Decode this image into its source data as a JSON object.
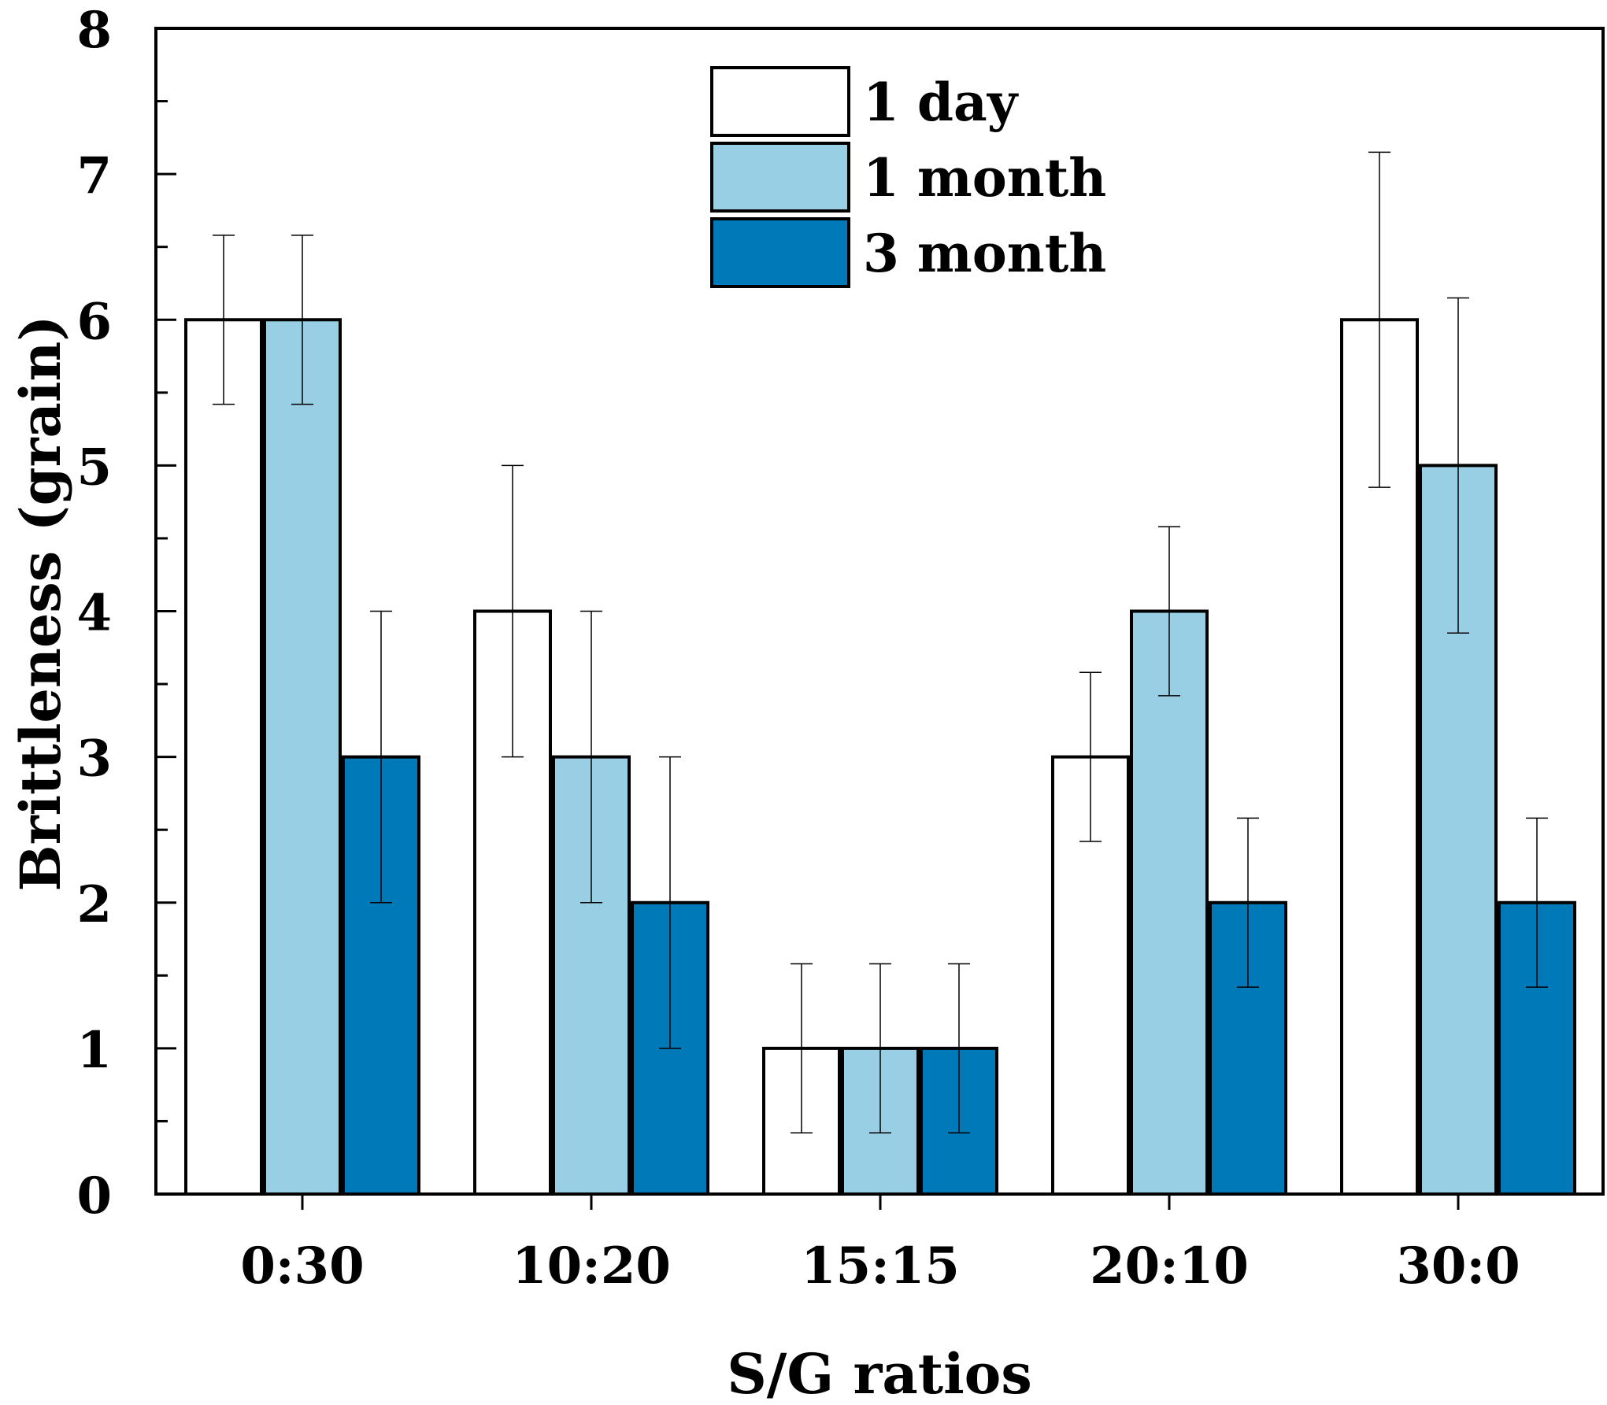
{
  "chart_data": {
    "type": "bar",
    "title": "",
    "xlabel": "S/G ratios",
    "ylabel": "Brittleness (grain)",
    "ylim": [
      0,
      8
    ],
    "yticks": [
      "0",
      "1",
      "2",
      "3",
      "4",
      "5",
      "6",
      "7",
      "8"
    ],
    "categories": [
      "0:30",
      "10:20",
      "15:15",
      "20:10",
      "30:0"
    ],
    "legend_position": "top-center",
    "series": [
      {
        "name": "1 day",
        "color": "#ffffff",
        "values": [
          6,
          4,
          1,
          3,
          6
        ],
        "errors": [
          0.58,
          1.0,
          0.58,
          0.58,
          1.15
        ]
      },
      {
        "name": "1 month",
        "color": "#99cfe4",
        "values": [
          6,
          3,
          1,
          4,
          5
        ],
        "errors": [
          0.58,
          1.0,
          0.58,
          0.58,
          1.15
        ]
      },
      {
        "name": "3 month",
        "color": "#0079b9",
        "values": [
          3,
          2,
          1,
          2,
          2
        ],
        "errors": [
          1.0,
          1.0,
          0.58,
          0.58,
          0.58
        ]
      }
    ]
  }
}
